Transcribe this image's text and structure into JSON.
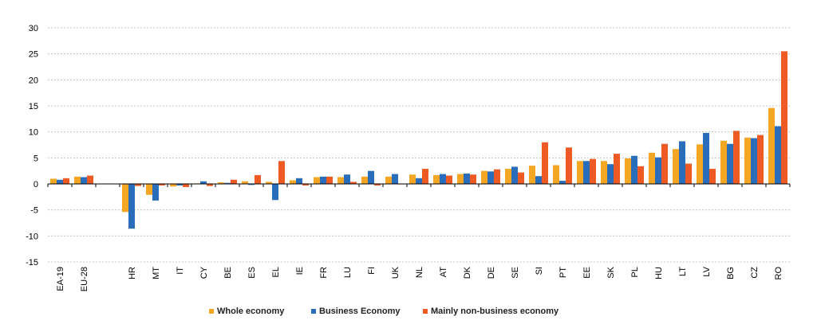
{
  "chart_data": {
    "type": "bar",
    "title": "",
    "xlabel": "",
    "ylabel": "",
    "ylim": [
      -15,
      30
    ],
    "yticks": [
      -15,
      -10,
      -5,
      0,
      5,
      10,
      15,
      20,
      25,
      30
    ],
    "grid": true,
    "legend_position": "bottom",
    "categories": [
      "EA-19",
      "EU-28",
      "",
      "HR",
      "MT",
      "IT",
      "CY",
      "BE",
      "ES",
      "EL",
      "IE",
      "FR",
      "LU",
      "FI",
      "UK",
      "NL",
      "AT",
      "DK",
      "DE",
      "SE",
      "SI",
      "PT",
      "EE",
      "SK",
      "PL",
      "HU",
      "LT",
      "LV",
      "BG",
      "CZ",
      "RO"
    ],
    "series": [
      {
        "name": "Whole economy",
        "color": "#F5A623",
        "values": [
          1.0,
          1.4,
          null,
          -5.4,
          -2.1,
          -0.5,
          0.1,
          0.3,
          0.5,
          0.4,
          0.7,
          1.3,
          1.3,
          1.4,
          1.4,
          1.8,
          1.7,
          1.9,
          2.5,
          2.9,
          3.5,
          3.6,
          4.4,
          4.4,
          4.9,
          6.0,
          6.7,
          7.6,
          8.3,
          8.9,
          14.6
        ]
      },
      {
        "name": "Business Economy",
        "color": "#2A6EBB",
        "values": [
          0.8,
          1.3,
          null,
          -8.6,
          -3.2,
          -0.3,
          0.5,
          0.2,
          -0.2,
          -3.1,
          1.1,
          1.4,
          1.8,
          2.5,
          1.9,
          1.1,
          1.9,
          2.0,
          2.4,
          3.3,
          1.5,
          0.6,
          4.4,
          3.8,
          5.4,
          5.1,
          8.2,
          9.8,
          7.7,
          8.8,
          11.1
        ]
      },
      {
        "name": "Mainly non-business economy",
        "color": "#EE5A24",
        "values": [
          1.1,
          1.6,
          null,
          -0.4,
          -0.3,
          -0.6,
          -0.4,
          0.8,
          1.7,
          4.4,
          -0.3,
          1.4,
          0.4,
          -0.3,
          0.0,
          2.9,
          1.6,
          1.8,
          2.8,
          2.2,
          8.0,
          7.0,
          4.8,
          5.8,
          3.4,
          7.7,
          3.9,
          2.9,
          10.2,
          9.4,
          25.5
        ]
      }
    ]
  }
}
